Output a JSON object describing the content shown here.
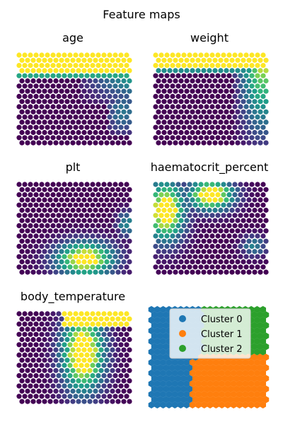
{
  "figure": {
    "title": "Feature maps"
  },
  "chart_data": [
    {
      "type": "heatmap",
      "title": "age",
      "grid": false,
      "colormap": "viridis",
      "value_range": [
        0,
        1
      ],
      "description_of_pattern": "high values in top rows, transitioning down the right side"
    },
    {
      "type": "heatmap",
      "title": "weight",
      "grid": false,
      "colormap": "viridis",
      "value_range": [
        0,
        1
      ],
      "description_of_pattern": "high values along top and right edge"
    },
    {
      "type": "heatmap",
      "title": "plt",
      "grid": false,
      "colormap": "viridis",
      "value_range": [
        0,
        1
      ],
      "description_of_pattern": "high values in bottom-center, low elsewhere"
    },
    {
      "type": "heatmap",
      "title": "haematocrit_percent",
      "grid": false,
      "colormap": "viridis",
      "value_range": [
        0,
        1
      ],
      "description_of_pattern": "high values in top-left and top-center blobs"
    },
    {
      "type": "heatmap",
      "title": "body_temperature",
      "grid": false,
      "colormap": "viridis",
      "value_range": [
        0,
        1
      ],
      "description_of_pattern": "high values in a central vertical band"
    },
    {
      "type": "scatter",
      "title": "",
      "grid": false,
      "legend_position": "top-center",
      "series": [
        {
          "name": "Cluster 0",
          "color": "#1f77b4",
          "region": "left and center"
        },
        {
          "name": "Cluster 1",
          "color": "#ff7f0e",
          "region": "bottom right"
        },
        {
          "name": "Cluster 2",
          "color": "#2ca02c",
          "region": "top right"
        }
      ]
    }
  ]
}
